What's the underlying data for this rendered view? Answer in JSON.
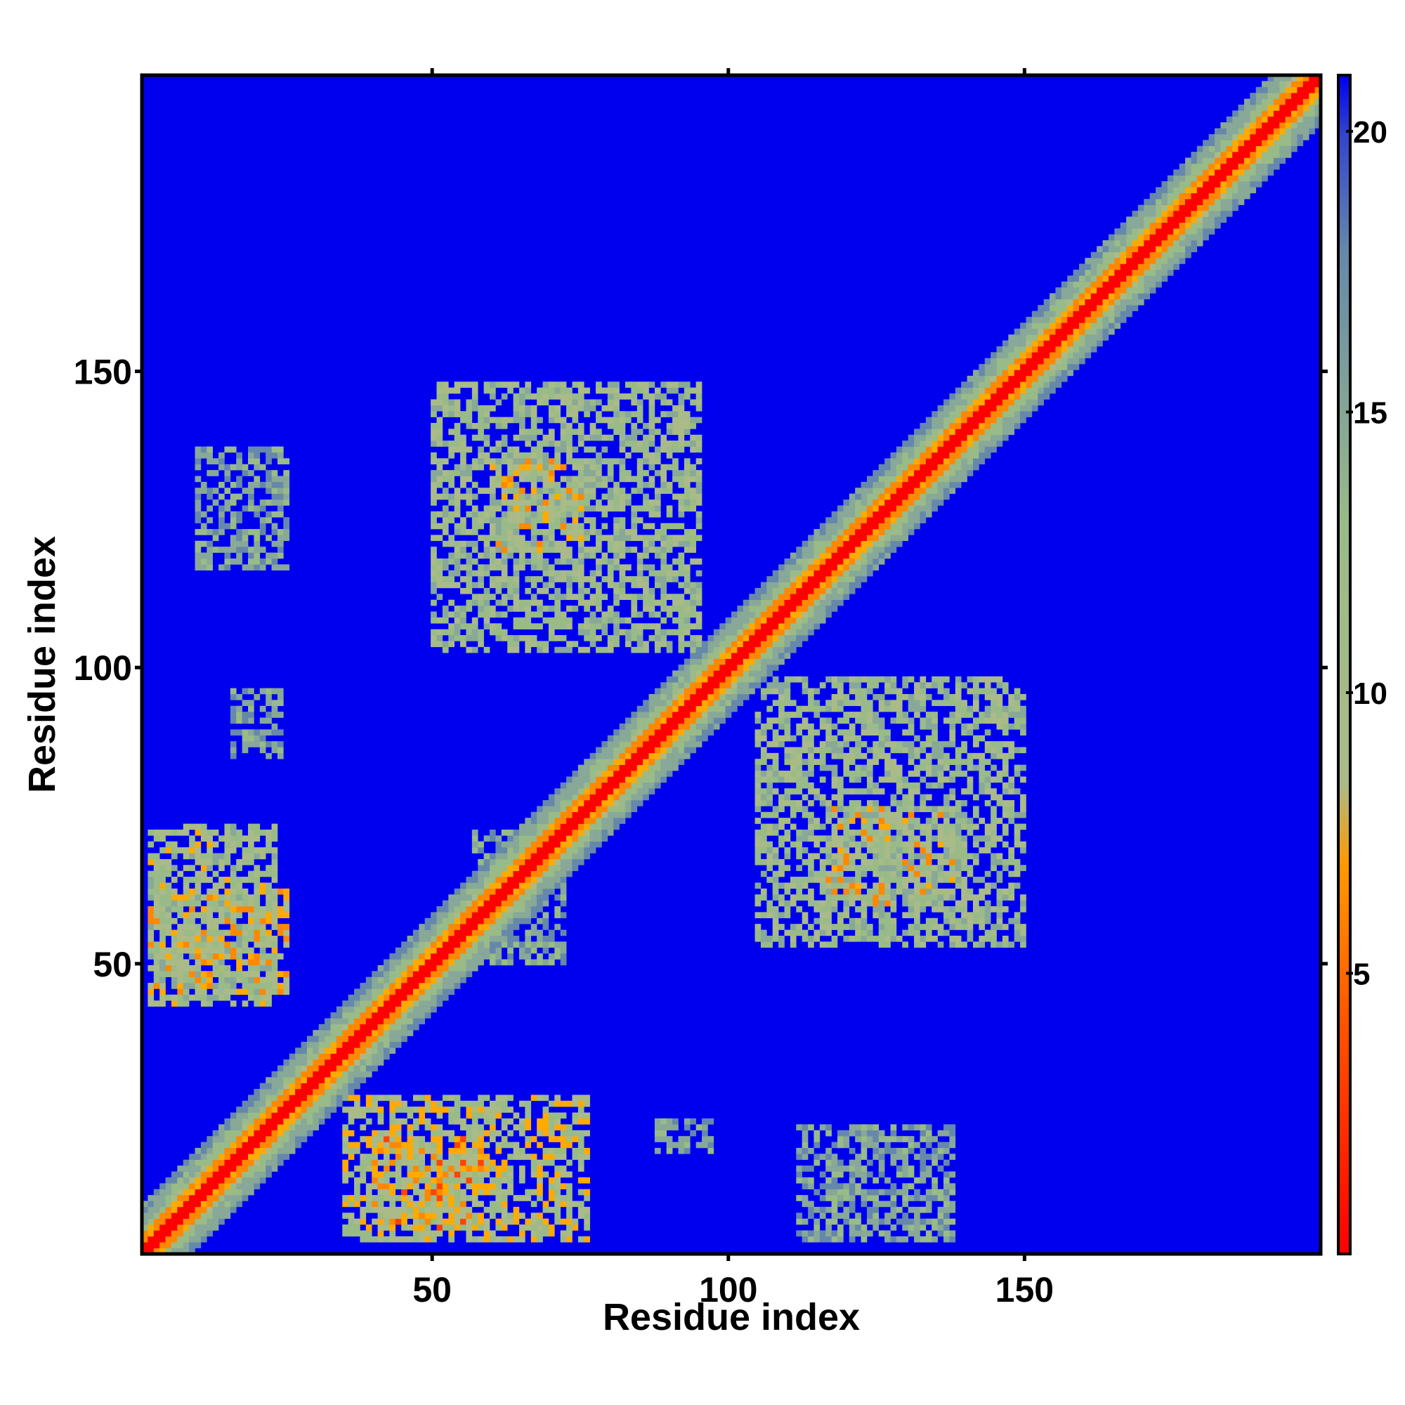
{
  "chart_data": {
    "type": "heatmap",
    "title": "",
    "xlabel": "Residue index",
    "ylabel": "Residue index",
    "xlim": [
      1,
      200
    ],
    "ylim": [
      1,
      200
    ],
    "x_ticks": [
      50,
      100,
      150
    ],
    "y_ticks": [
      50,
      100,
      150
    ],
    "colorbar": {
      "range": [
        0,
        21
      ],
      "ticks": [
        5,
        10,
        15,
        20
      ],
      "colors": [
        "#ff0000",
        "#ff9900",
        "#99bb88",
        "#6688aa",
        "#0000ee"
      ]
    },
    "background_value": 21,
    "diagonal_band": {
      "from": 1,
      "to": 200,
      "core_value": 2,
      "edge_value": 11,
      "half_width_residues": 8
    },
    "off_diagonal_contacts": [
      {
        "x_range": [
          2,
          23
        ],
        "y_range": [
          43,
          73
        ],
        "value": 10
      },
      {
        "x_range": [
          2,
          25
        ],
        "y_range": [
          45,
          62
        ],
        "value": 7
      },
      {
        "x_range": [
          35,
          76
        ],
        "y_range": [
          3,
          27
        ],
        "value": 9
      },
      {
        "x_range": [
          40,
          58
        ],
        "y_range": [
          5,
          20
        ],
        "value": 6
      },
      {
        "x_range": [
          50,
          95
        ],
        "y_range": [
          103,
          148
        ],
        "value": 11
      },
      {
        "x_range": [
          60,
          75
        ],
        "y_range": [
          120,
          135
        ],
        "value": 7
      },
      {
        "x_range": [
          105,
          150
        ],
        "y_range": [
          53,
          98
        ],
        "value": 11
      },
      {
        "x_range": [
          117,
          138
        ],
        "y_range": [
          60,
          76
        ],
        "value": 7
      },
      {
        "x_range": [
          10,
          25
        ],
        "y_range": [
          117,
          137
        ],
        "value": 14
      },
      {
        "x_range": [
          16,
          24
        ],
        "y_range": [
          85,
          96
        ],
        "value": 14
      },
      {
        "x_range": [
          88,
          97
        ],
        "y_range": [
          18,
          23
        ],
        "value": 14
      },
      {
        "x_range": [
          112,
          138
        ],
        "y_range": [
          3,
          22
        ],
        "value": 14
      },
      {
        "x_range": [
          57,
          72
        ],
        "y_range": [
          50,
          72
        ],
        "value": 14
      }
    ]
  }
}
